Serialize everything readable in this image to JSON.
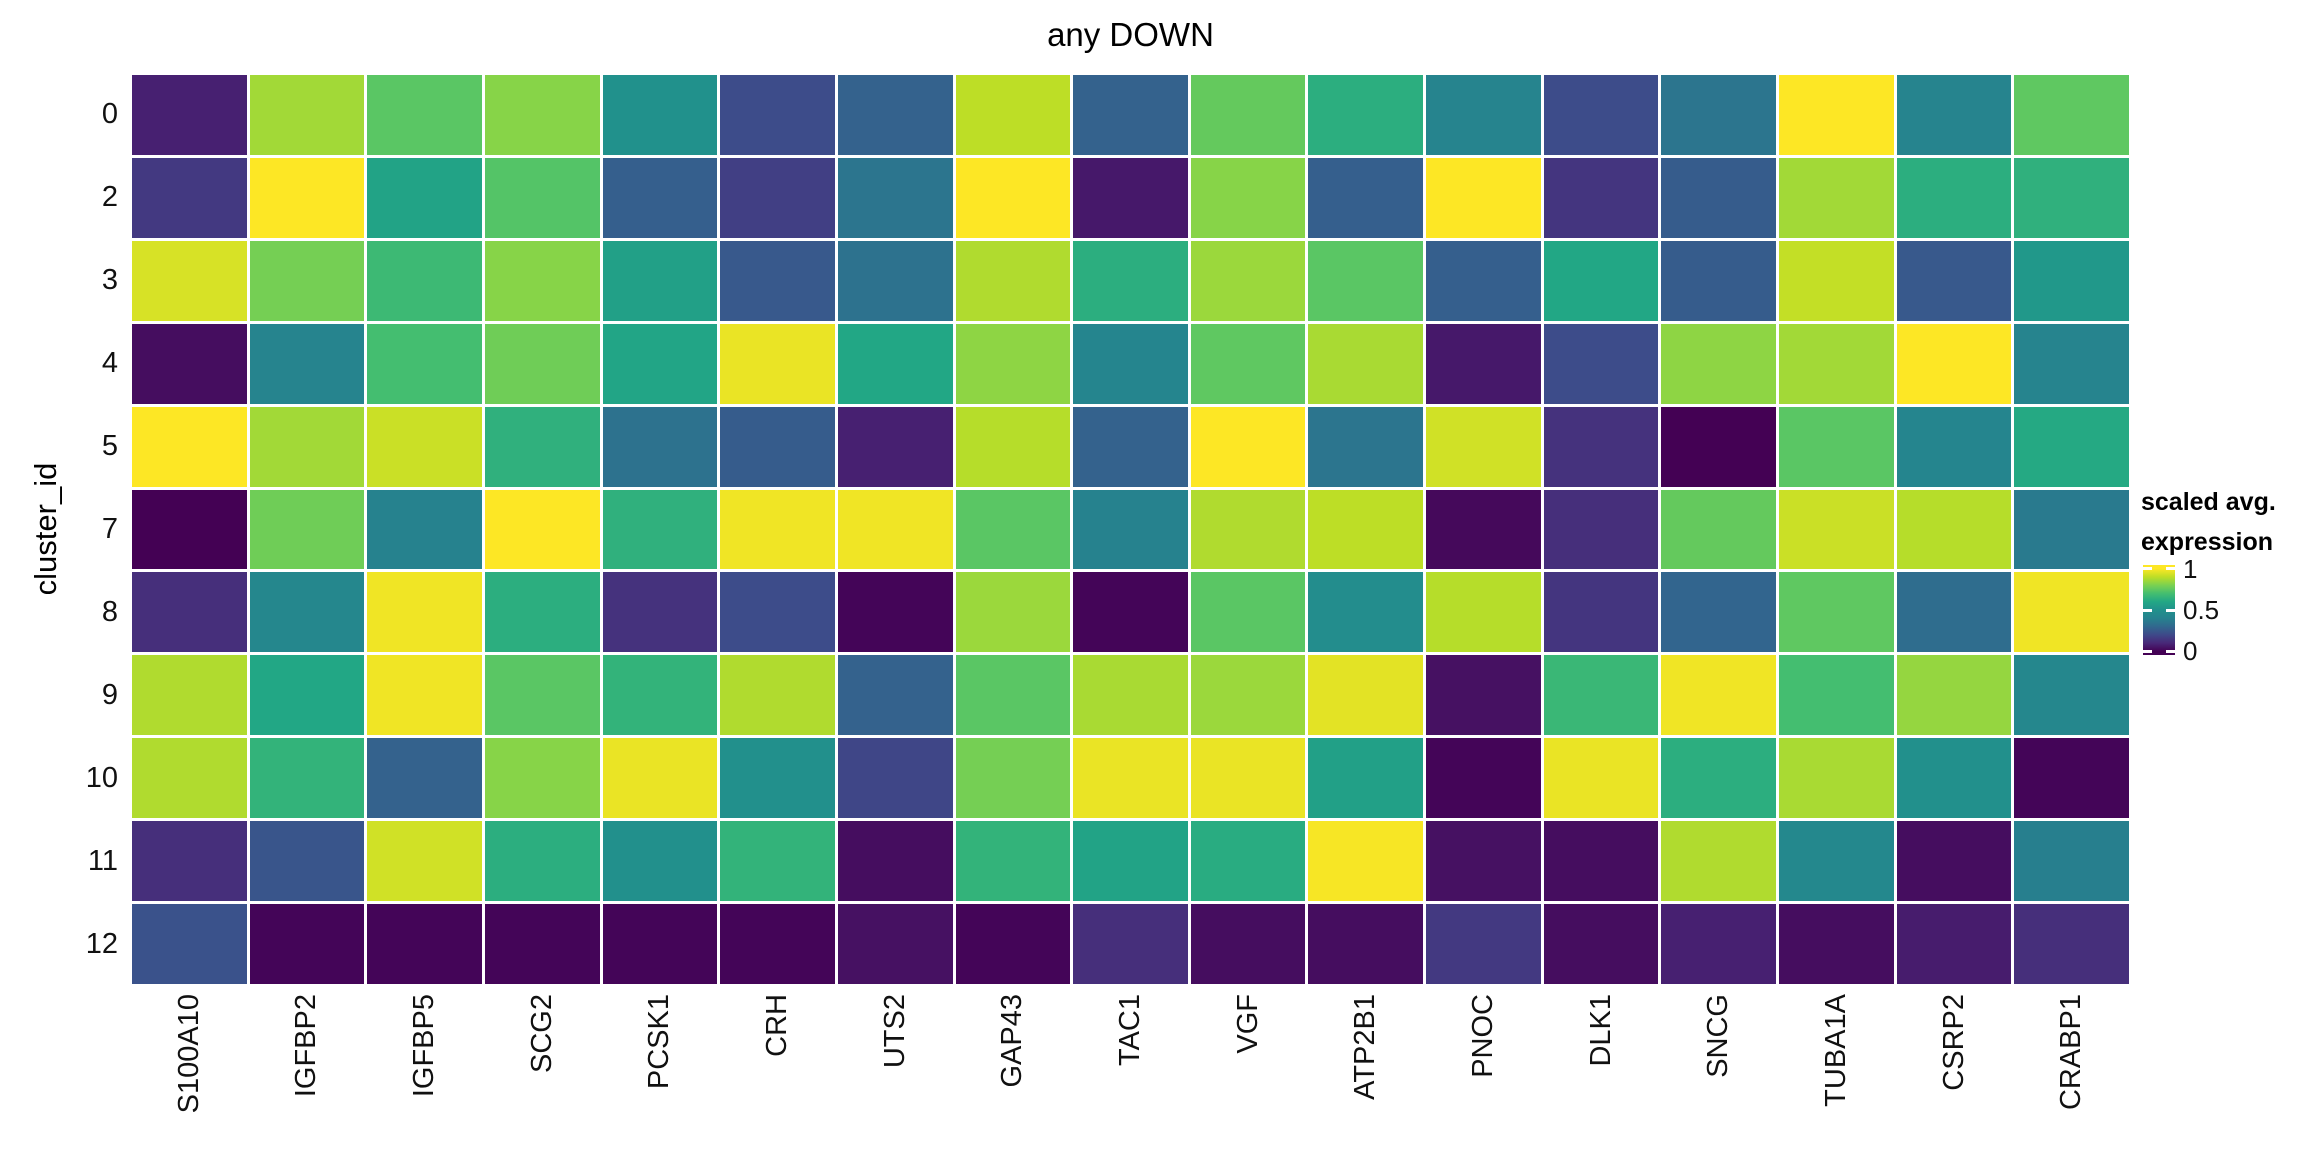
{
  "chart_data": {
    "type": "heatmap",
    "title": "any DOWN",
    "xlabel": "",
    "ylabel": "cluster_id",
    "x_categories": [
      "S100A10",
      "IGFBP2",
      "IGFBP5",
      "SCG2",
      "PCSK1",
      "CRH",
      "UTS2",
      "GAP43",
      "TAC1",
      "VGF",
      "ATP2B1",
      "PNOC",
      "DLK1",
      "SNCG",
      "TUBA1A",
      "CSRP2",
      "CRABP1"
    ],
    "y_categories": [
      "0",
      "2",
      "3",
      "4",
      "5",
      "7",
      "8",
      "9",
      "10",
      "11",
      "12"
    ],
    "values": [
      [
        0.08,
        0.86,
        0.74,
        0.82,
        0.5,
        0.21,
        0.28,
        0.9,
        0.28,
        0.76,
        0.63,
        0.41,
        0.21,
        0.35,
        1.0,
        0.41,
        0.75
      ],
      [
        0.15,
        1.0,
        0.58,
        0.73,
        0.27,
        0.17,
        0.35,
        1.0,
        0.06,
        0.82,
        0.27,
        1.0,
        0.14,
        0.26,
        0.86,
        0.63,
        0.64
      ],
      [
        0.94,
        0.79,
        0.68,
        0.82,
        0.57,
        0.25,
        0.34,
        0.88,
        0.63,
        0.85,
        0.74,
        0.27,
        0.6,
        0.26,
        0.91,
        0.25,
        0.53
      ],
      [
        0.03,
        0.41,
        0.7,
        0.78,
        0.59,
        0.97,
        0.6,
        0.83,
        0.42,
        0.75,
        0.87,
        0.06,
        0.21,
        0.83,
        0.86,
        1.0,
        0.41
      ],
      [
        1.0,
        0.86,
        0.92,
        0.64,
        0.34,
        0.26,
        0.08,
        0.89,
        0.28,
        1.0,
        0.35,
        0.93,
        0.13,
        0.0,
        0.74,
        0.42,
        0.61
      ],
      [
        0.0,
        0.78,
        0.4,
        1.0,
        0.64,
        0.98,
        0.98,
        0.74,
        0.4,
        0.88,
        0.9,
        0.02,
        0.12,
        0.76,
        0.92,
        0.89,
        0.37
      ],
      [
        0.12,
        0.43,
        0.98,
        0.63,
        0.13,
        0.21,
        0.01,
        0.85,
        0.01,
        0.74,
        0.47,
        0.89,
        0.14,
        0.29,
        0.75,
        0.32,
        0.98
      ],
      [
        0.88,
        0.6,
        0.98,
        0.74,
        0.65,
        0.88,
        0.28,
        0.74,
        0.87,
        0.85,
        0.96,
        0.04,
        0.67,
        0.98,
        0.7,
        0.84,
        0.43
      ],
      [
        0.88,
        0.65,
        0.28,
        0.82,
        0.97,
        0.49,
        0.19,
        0.79,
        0.97,
        0.97,
        0.57,
        0.01,
        0.97,
        0.63,
        0.87,
        0.49,
        0.01
      ],
      [
        0.12,
        0.24,
        0.93,
        0.63,
        0.49,
        0.65,
        0.03,
        0.65,
        0.58,
        0.62,
        0.99,
        0.04,
        0.03,
        0.88,
        0.44,
        0.03,
        0.39
      ],
      [
        0.23,
        0.01,
        0.01,
        0.01,
        0.01,
        0.01,
        0.04,
        0.01,
        0.12,
        0.03,
        0.03,
        0.15,
        0.03,
        0.08,
        0.03,
        0.07,
        0.12
      ]
    ],
    "value_range": [
      0,
      1
    ],
    "colormap": "viridis",
    "colormap_anchors": [
      [
        0.0,
        "#440154"
      ],
      [
        0.1,
        "#482878"
      ],
      [
        0.2,
        "#3e4989"
      ],
      [
        0.3,
        "#31688e"
      ],
      [
        0.4,
        "#26828e"
      ],
      [
        0.5,
        "#21918c"
      ],
      [
        0.6,
        "#22a785"
      ],
      [
        0.7,
        "#44be70"
      ],
      [
        0.8,
        "#7ad151"
      ],
      [
        0.9,
        "#bdde26"
      ],
      [
        1.0,
        "#fde725"
      ]
    ],
    "grid_gap_color": "#ffffff",
    "legend": {
      "position": "right",
      "title_lines": [
        "scaled avg.",
        "expression"
      ],
      "tick_labels": [
        "1",
        "0.5",
        "0"
      ],
      "tick_values": [
        1,
        0.5,
        0
      ]
    }
  }
}
